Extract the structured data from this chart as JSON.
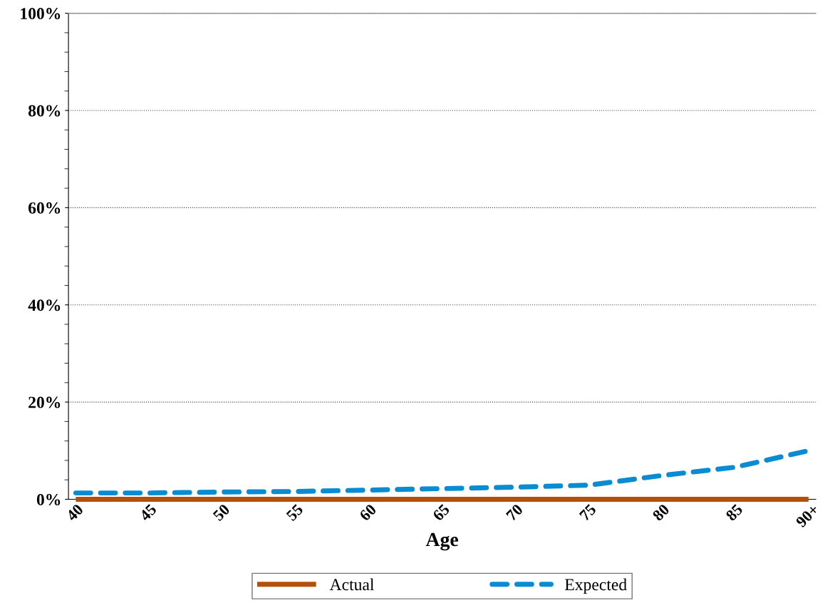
{
  "chart_data": {
    "type": "line",
    "xlabel": "Age",
    "categories": [
      "40",
      "45",
      "50",
      "55",
      "60",
      "65",
      "70",
      "75",
      "80",
      "85",
      "90+"
    ],
    "series": [
      {
        "name": "Actual",
        "color": "#b4500a",
        "values": [
          0,
          0,
          0,
          0,
          0,
          0,
          0,
          0,
          0,
          0,
          0
        ],
        "line_style": "solid"
      },
      {
        "name": "Expected",
        "color": "#0a8cd2",
        "values": [
          1.3,
          1.3,
          1.5,
          1.6,
          1.9,
          2.2,
          2.5,
          2.9,
          4.9,
          6.6,
          10.0
        ],
        "line_style": "dashed"
      }
    ],
    "ylim": [
      0,
      100
    ],
    "yticks": [
      {
        "value": 0,
        "label": "0%"
      },
      {
        "value": 20,
        "label": "20%"
      },
      {
        "value": 40,
        "label": "40%"
      },
      {
        "value": 60,
        "label": "60%"
      },
      {
        "value": 80,
        "label": "80%"
      },
      {
        "value": 100,
        "label": "100%"
      }
    ],
    "grid": "y",
    "legend": "bottom"
  }
}
